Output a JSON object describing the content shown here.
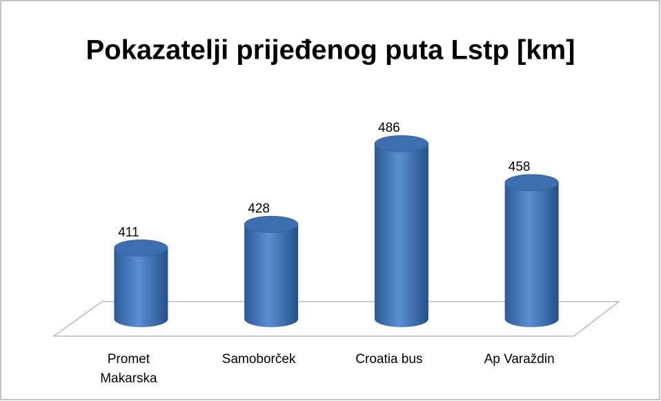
{
  "chart_data": {
    "type": "bar",
    "title": "Pokazatelji prijeđenog puta Lstp [km]",
    "categories": [
      "Promet Makarska",
      "Samoborček",
      "Croatia bus",
      "Ap Varaždin"
    ],
    "values": [
      411,
      428,
      486,
      458
    ],
    "color": "#4f81bd",
    "ylim": [
      360,
      500
    ]
  }
}
